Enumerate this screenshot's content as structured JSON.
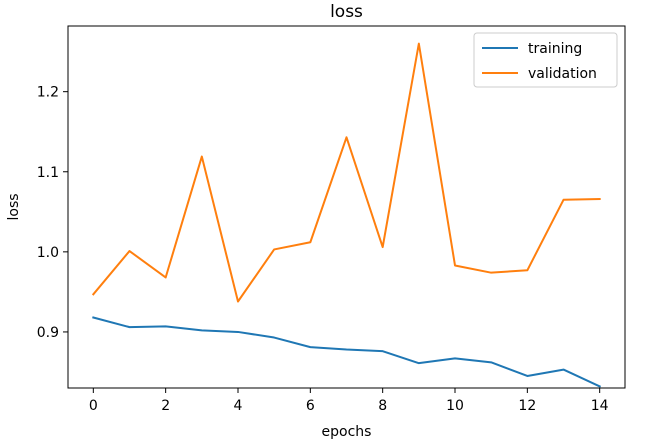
{
  "chart_data": {
    "type": "line",
    "title": "loss",
    "xlabel": "epochs",
    "ylabel": "loss",
    "x": [
      0,
      1,
      2,
      3,
      4,
      5,
      6,
      7,
      8,
      9,
      10,
      11,
      12,
      13,
      14
    ],
    "xlim": [
      -0.7,
      14.7
    ],
    "ylim": [
      0.83,
      1.282
    ],
    "xticks": [
      "0",
      "2",
      "4",
      "6",
      "8",
      "10",
      "12",
      "14"
    ],
    "xtick_values": [
      0,
      2,
      4,
      6,
      8,
      10,
      12,
      14
    ],
    "yticks": [
      "0.9",
      "1.0",
      "1.1",
      "1.2"
    ],
    "ytick_values": [
      0.9,
      1.0,
      1.1,
      1.2
    ],
    "grid": false,
    "legend_position": "top-right",
    "series": [
      {
        "name": "training",
        "color": "#1f77b4",
        "values": [
          0.918,
          0.906,
          0.907,
          0.902,
          0.9,
          0.893,
          0.881,
          0.878,
          0.876,
          0.861,
          0.867,
          0.862,
          0.845,
          0.853,
          0.832
        ]
      },
      {
        "name": "validation",
        "color": "#ff7f0e",
        "values": [
          0.947,
          1.001,
          0.968,
          1.119,
          0.938,
          1.003,
          1.012,
          1.143,
          1.006,
          1.26,
          0.983,
          0.974,
          0.977,
          1.065,
          1.066
        ]
      }
    ]
  }
}
